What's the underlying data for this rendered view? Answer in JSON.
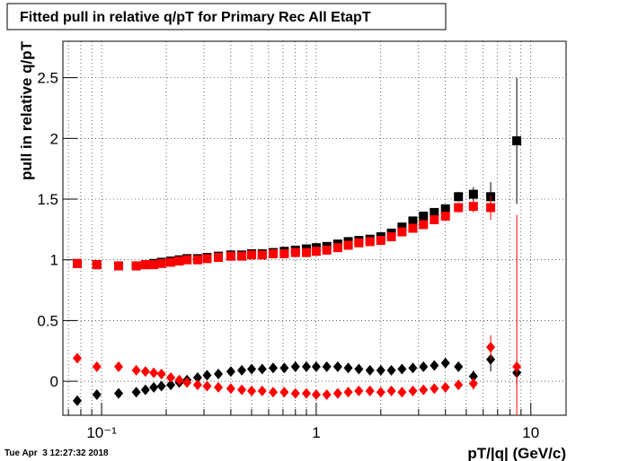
{
  "chart_data": {
    "type": "scatter",
    "title": "Fitted pull in relative q/pT  for Primary Rec All EtapT",
    "x_label": "pT/|q| (GeV/c)",
    "y_label": "pull in relative q/pT",
    "timestamp": "Tue Apr  3 12:27:32 2018",
    "x_log": true,
    "grid": true,
    "xlim": [
      0.066,
      14.6
    ],
    "ylim": [
      -0.28,
      2.8
    ],
    "xticks": [
      {
        "value": 0.1,
        "label": "10⁻¹"
      },
      1,
      10
    ],
    "xminorticks": [
      0.07,
      0.08,
      0.09,
      0.2,
      0.3,
      0.4,
      0.5,
      0.6,
      0.7,
      0.8,
      0.9,
      2,
      3,
      4,
      5,
      6,
      7,
      8,
      9
    ],
    "yticks": [
      0,
      0.5,
      1,
      1.5,
      2,
      2.5
    ],
    "x": [
      0.077,
      0.095,
      0.12,
      0.145,
      0.16,
      0.175,
      0.19,
      0.21,
      0.23,
      0.25,
      0.28,
      0.31,
      0.35,
      0.4,
      0.45,
      0.5,
      0.56,
      0.63,
      0.71,
      0.8,
      0.9,
      1.0,
      1.12,
      1.26,
      1.41,
      1.58,
      1.78,
      2.0,
      2.24,
      2.51,
      2.82,
      3.16,
      3.55,
      4.0,
      4.6,
      5.4,
      6.5,
      8.6
    ],
    "series": [
      {
        "color": "#000000",
        "marker": "square",
        "values": [
          0.97,
          0.96,
          0.95,
          0.95,
          0.96,
          0.97,
          0.98,
          0.99,
          1.0,
          1.01,
          1.01,
          1.02,
          1.03,
          1.04,
          1.04,
          1.05,
          1.05,
          1.06,
          1.07,
          1.08,
          1.09,
          1.1,
          1.11,
          1.13,
          1.15,
          1.16,
          1.17,
          1.19,
          1.22,
          1.27,
          1.32,
          1.36,
          1.39,
          1.42,
          1.52,
          1.54,
          1.52,
          1.98
        ],
        "errors": [
          null,
          null,
          null,
          null,
          null,
          null,
          null,
          null,
          null,
          null,
          null,
          null,
          null,
          null,
          null,
          null,
          null,
          null,
          null,
          null,
          null,
          null,
          null,
          null,
          null,
          null,
          null,
          null,
          null,
          null,
          null,
          null,
          null,
          null,
          0.04,
          0.06,
          0.12,
          0.52
        ]
      },
      {
        "color": "#ff0000",
        "marker": "square",
        "values": [
          0.97,
          0.96,
          0.95,
          0.95,
          0.96,
          0.96,
          0.97,
          0.98,
          0.99,
          1.0,
          1.0,
          1.01,
          1.02,
          1.03,
          1.03,
          1.04,
          1.04,
          1.05,
          1.05,
          1.06,
          1.06,
          1.07,
          1.08,
          1.1,
          1.12,
          1.14,
          1.15,
          1.16,
          1.19,
          1.23,
          1.26,
          1.29,
          1.33,
          1.36,
          1.43,
          1.44,
          1.43,
          null
        ],
        "errors": [
          null,
          null,
          null,
          null,
          null,
          null,
          null,
          null,
          null,
          null,
          null,
          null,
          null,
          null,
          null,
          null,
          null,
          null,
          null,
          null,
          null,
          null,
          null,
          null,
          null,
          null,
          null,
          null,
          null,
          null,
          null,
          null,
          null,
          null,
          0.04,
          0.05,
          0.1,
          null
        ]
      },
      {
        "color": "#000000",
        "marker": "diamond",
        "values": [
          -0.16,
          -0.11,
          -0.1,
          -0.09,
          -0.07,
          -0.05,
          -0.04,
          -0.03,
          -0.01,
          0.01,
          0.03,
          0.05,
          0.06,
          0.08,
          0.09,
          0.1,
          0.1,
          0.11,
          0.11,
          0.12,
          0.12,
          0.12,
          0.12,
          0.12,
          0.11,
          0.1,
          0.09,
          0.09,
          0.09,
          0.1,
          0.11,
          0.12,
          0.13,
          0.15,
          0.12,
          0.04,
          0.18,
          0.07
        ],
        "errors": [
          null,
          null,
          null,
          null,
          null,
          null,
          null,
          null,
          null,
          null,
          null,
          null,
          null,
          null,
          null,
          null,
          null,
          null,
          null,
          null,
          null,
          null,
          null,
          null,
          null,
          null,
          null,
          null,
          null,
          null,
          null,
          null,
          null,
          null,
          0.03,
          0.05,
          0.1,
          0.1
        ]
      },
      {
        "color": "#ff0000",
        "marker": "diamond",
        "values": [
          0.19,
          0.12,
          0.12,
          0.09,
          0.08,
          0.07,
          0.06,
          0.03,
          0.01,
          -0.01,
          -0.03,
          -0.04,
          -0.05,
          -0.06,
          -0.07,
          -0.08,
          -0.08,
          -0.09,
          -0.09,
          -0.1,
          -0.1,
          -0.11,
          -0.11,
          -0.1,
          -0.09,
          -0.08,
          -0.08,
          -0.09,
          -0.08,
          -0.09,
          -0.08,
          -0.07,
          -0.06,
          -0.05,
          -0.03,
          -0.02,
          0.28,
          0.12
        ],
        "errors": [
          null,
          null,
          null,
          null,
          null,
          null,
          null,
          null,
          null,
          null,
          null,
          null,
          null,
          null,
          null,
          null,
          null,
          null,
          null,
          null,
          null,
          null,
          null,
          null,
          null,
          null,
          null,
          null,
          null,
          null,
          null,
          null,
          null,
          null,
          0.03,
          0.05,
          0.1,
          1.25
        ]
      }
    ]
  }
}
